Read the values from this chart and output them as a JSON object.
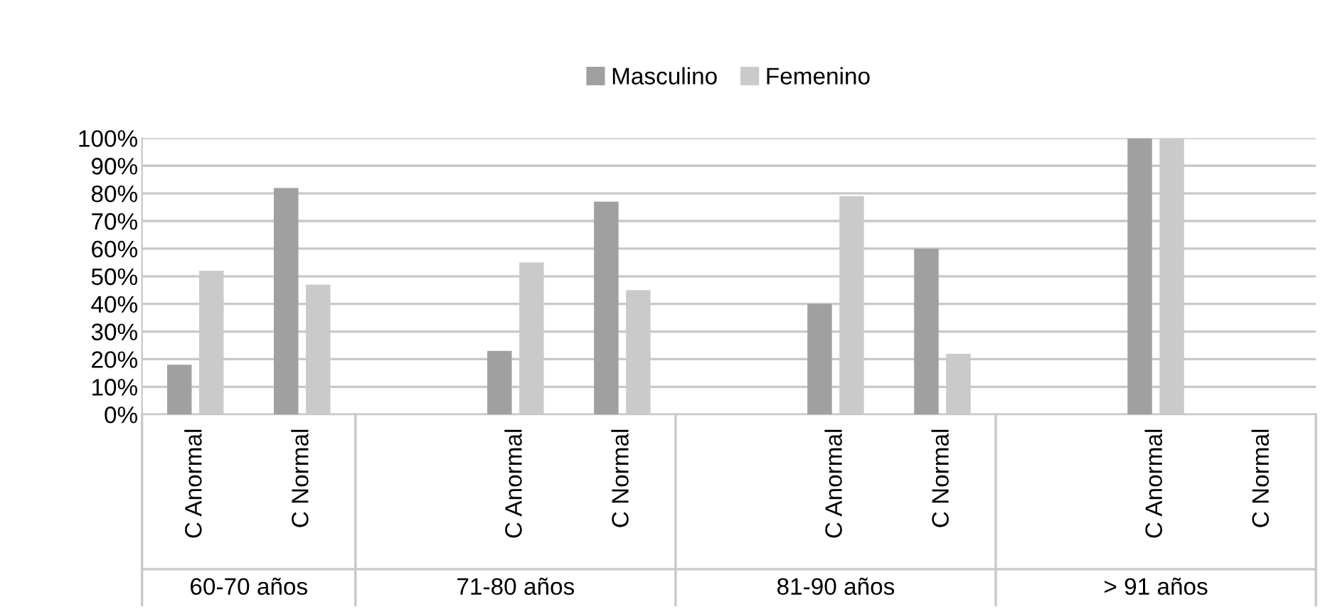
{
  "chart_data": {
    "type": "bar",
    "categories": [
      "C Anormal",
      "C Normal",
      null,
      "C Anormal",
      "C Normal",
      null,
      "C Anormal",
      "C Normal",
      null,
      "C Anormal",
      "C Normal"
    ],
    "series": [
      {
        "name": "Masculino",
        "color": "#a0a0a0",
        "values": [
          18,
          82,
          null,
          23,
          77,
          null,
          40,
          60,
          null,
          100,
          0
        ]
      },
      {
        "name": "Femenino",
        "color": "#cacaca",
        "values": [
          52,
          47,
          null,
          55,
          45,
          null,
          79,
          22,
          null,
          100,
          0
        ]
      }
    ],
    "annotations": [
      "60-70 años",
      "71-80 años",
      "81-90 años",
      "> 91 años"
    ],
    "ylim": [
      0,
      100
    ],
    "yticks": [
      {
        "value": 0,
        "label": "0%"
      },
      {
        "value": 10,
        "label": "10%"
      },
      {
        "value": 20,
        "label": "20%"
      },
      {
        "value": 30,
        "label": "30%"
      },
      {
        "value": 40,
        "label": "40%"
      },
      {
        "value": 50,
        "label": "50%"
      },
      {
        "value": 60,
        "label": "60%"
      },
      {
        "value": 70,
        "label": "70%"
      },
      {
        "value": 80,
        "label": "80%"
      },
      {
        "value": 90,
        "label": "90%"
      },
      {
        "value": 100,
        "label": "100%"
      }
    ],
    "grid": "y",
    "legend": "top"
  }
}
